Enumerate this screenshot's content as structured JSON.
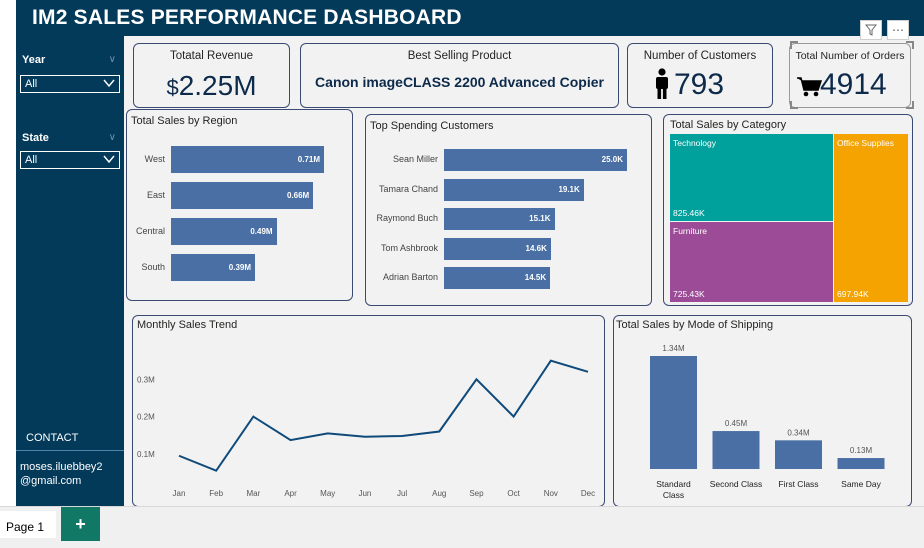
{
  "header": {
    "title": "IM2 SALES PERFORMANCE DASHBOARD"
  },
  "filters": {
    "year": {
      "label": "Year",
      "value": "All"
    },
    "state": {
      "label": "State",
      "value": "All"
    }
  },
  "contact": {
    "label": "CONTACT",
    "email_line1": "moses.iluebbey2",
    "email_line2": "@gmail.com"
  },
  "kpis": {
    "revenue": {
      "title": "Totatal Revenue",
      "prefix": "$",
      "value": "2.25M"
    },
    "best_product": {
      "title": "Best Selling Product",
      "value": "Canon imageCLASS 2200 Advanced Copier"
    },
    "customers": {
      "title": "Number of Customers",
      "value": "793"
    },
    "orders": {
      "title": "Total Number of Orders",
      "value": "4914"
    }
  },
  "colors": {
    "bar": "#4a6fa5",
    "line": "#0f4a7a",
    "header": "#033a5a",
    "technology": "#00a19c",
    "furniture": "#9c4c96",
    "office": "#f5a300"
  },
  "chart_data": [
    {
      "type": "bar",
      "orientation": "horizontal",
      "title": "Total Sales by Region",
      "categories": [
        "West",
        "East",
        "Central",
        "South"
      ],
      "values": [
        0.71,
        0.66,
        0.49,
        0.39
      ],
      "labels": [
        "0.71M",
        "0.66M",
        "0.49M",
        "0.39M"
      ]
    },
    {
      "type": "bar",
      "orientation": "horizontal",
      "title": "Top Spending Customers",
      "categories": [
        "Sean Miller",
        "Tamara Chand",
        "Raymond Buch",
        "Tom Ashbrook",
        "Adrian Barton"
      ],
      "values": [
        25.0,
        19.1,
        15.1,
        14.6,
        14.5
      ],
      "labels": [
        "25.0K",
        "19.1K",
        "15.1K",
        "14.6K",
        "14.5K"
      ]
    },
    {
      "type": "treemap",
      "title": "Total Sales by Category",
      "categories": [
        "Technology",
        "Furniture",
        "Office Supplies"
      ],
      "values": [
        825.46,
        725.43,
        697.94
      ],
      "labels": [
        "825.46K",
        "725.43K",
        "697.94K"
      ]
    },
    {
      "type": "line",
      "title": "Monthly Sales Trend",
      "x": [
        "Jan",
        "Feb",
        "Mar",
        "Apr",
        "May",
        "Jun",
        "Jul",
        "Aug",
        "Sep",
        "Oct",
        "Nov",
        "Dec"
      ],
      "y": [
        0.095,
        0.055,
        0.2,
        0.137,
        0.155,
        0.146,
        0.148,
        0.16,
        0.3,
        0.2,
        0.35,
        0.32
      ],
      "yticks": [
        "0.1M",
        "0.2M",
        "0.3M"
      ],
      "ytick_values": [
        0.1,
        0.2,
        0.3
      ],
      "ylim": [
        0.03,
        0.4
      ]
    },
    {
      "type": "bar",
      "title": "Total Sales by Mode of Shipping",
      "categories": [
        "Standard Class",
        "Second Class",
        "First Class",
        "Same Day"
      ],
      "values": [
        1.34,
        0.45,
        0.34,
        0.13
      ],
      "labels": [
        "1.34M",
        "0.45M",
        "0.34M",
        "0.13M"
      ]
    }
  ],
  "tabs": {
    "page": "Page 1",
    "add": "+"
  }
}
